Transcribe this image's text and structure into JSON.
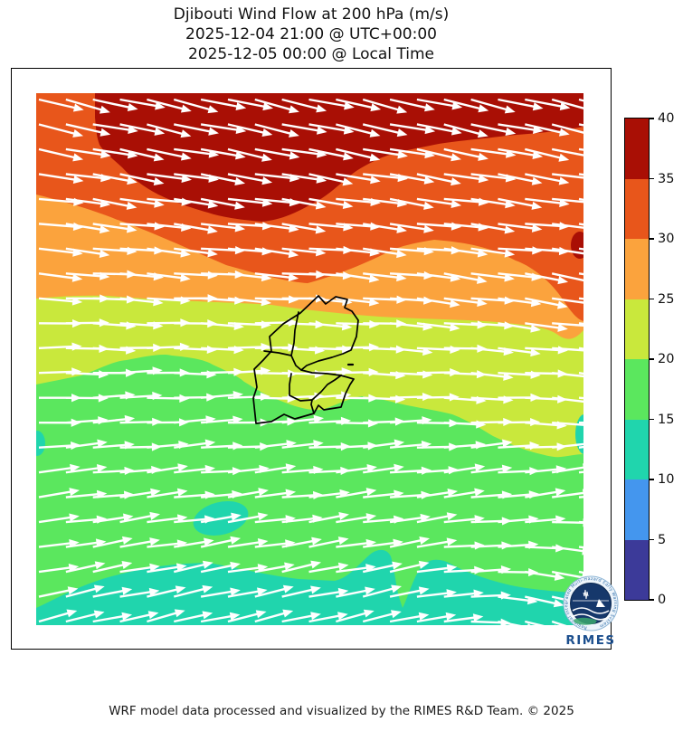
{
  "title": {
    "line1": "Djibouti Wind Flow at 200 hPa (m/s)",
    "line2": "2025-12-04 21:00 @ UTC+00:00",
    "line3": "2025-12-05 00:00 @ Local Time"
  },
  "footer": "WRF model data processed and visualized by the RIMES R&D Team. © 2025",
  "logo": {
    "text": "RIMES",
    "ring_text": "Regional Integrated Multi-Hazard Early Warning System"
  },
  "palette": {
    "band_0_5": "#3c3a99",
    "band_5_10": "#4496ee",
    "band_10_15": "#20d5ad",
    "band_15_20": "#5be75e",
    "band_20_25": "#c9e83c",
    "band_25_30": "#fba33d",
    "band_30_35": "#e8561b",
    "band_35_40": "#a90f05",
    "arrow": "#ffffff",
    "outline": "#000000"
  },
  "colorbar": {
    "min": 0,
    "max": 40,
    "ticks": [
      0,
      5,
      10,
      15,
      20,
      25,
      30,
      35,
      40
    ],
    "colors_low_to_high": [
      "#3c3a99",
      "#4496ee",
      "#20d5ad",
      "#5be75e",
      "#c9e83c",
      "#fba33d",
      "#e8561b",
      "#a90f05"
    ]
  },
  "arrows": {
    "cols": 21,
    "rows": 22,
    "color": "#ffffff"
  },
  "chart_data": {
    "type": "heatmap",
    "title": "Djibouti Wind Flow at 200 hPa (m/s)",
    "subtitle_utc": "2025-12-04 21:00 @ UTC+00:00",
    "subtitle_local": "2025-12-05 00:00 @ Local Time",
    "variable": "wind speed at 200 hPa",
    "units": "m/s",
    "legend_position": "right colorbar",
    "colorbar": {
      "min": 0,
      "max": 40,
      "tick_step": 5,
      "ticks": [
        0,
        5,
        10,
        15,
        20,
        25,
        30,
        35,
        40
      ],
      "band_colors_low_to_high": [
        "#3c3a99",
        "#4496ee",
        "#20d5ad",
        "#5be75e",
        "#c9e83c",
        "#fba33d",
        "#e8561b",
        "#a90f05"
      ]
    },
    "field_bands_top_to_bottom": [
      {
        "region": "north edge strip and upper-central patch",
        "wind_speed_ms": "35-40",
        "direction": "east-southeast"
      },
      {
        "region": "upper band",
        "wind_speed_ms": "30-35",
        "direction": "east-southeast"
      },
      {
        "region": "upper-middle band",
        "wind_speed_ms": "25-30",
        "direction": "east"
      },
      {
        "region": "middle band over Djibouti",
        "wind_speed_ms": "20-25",
        "direction": "east"
      },
      {
        "region": "lower band",
        "wind_speed_ms": "15-20",
        "direction": "east-northeast"
      },
      {
        "region": "southern patches and bottom band",
        "wind_speed_ms": "10-15",
        "direction": "east-northeast, southeast near bottom-right corner"
      }
    ],
    "overlays": [
      "white quiver arrows showing wind direction",
      "Djibouti national and regional boundaries in black",
      "RIMES circular logo at bottom-right"
    ]
  }
}
